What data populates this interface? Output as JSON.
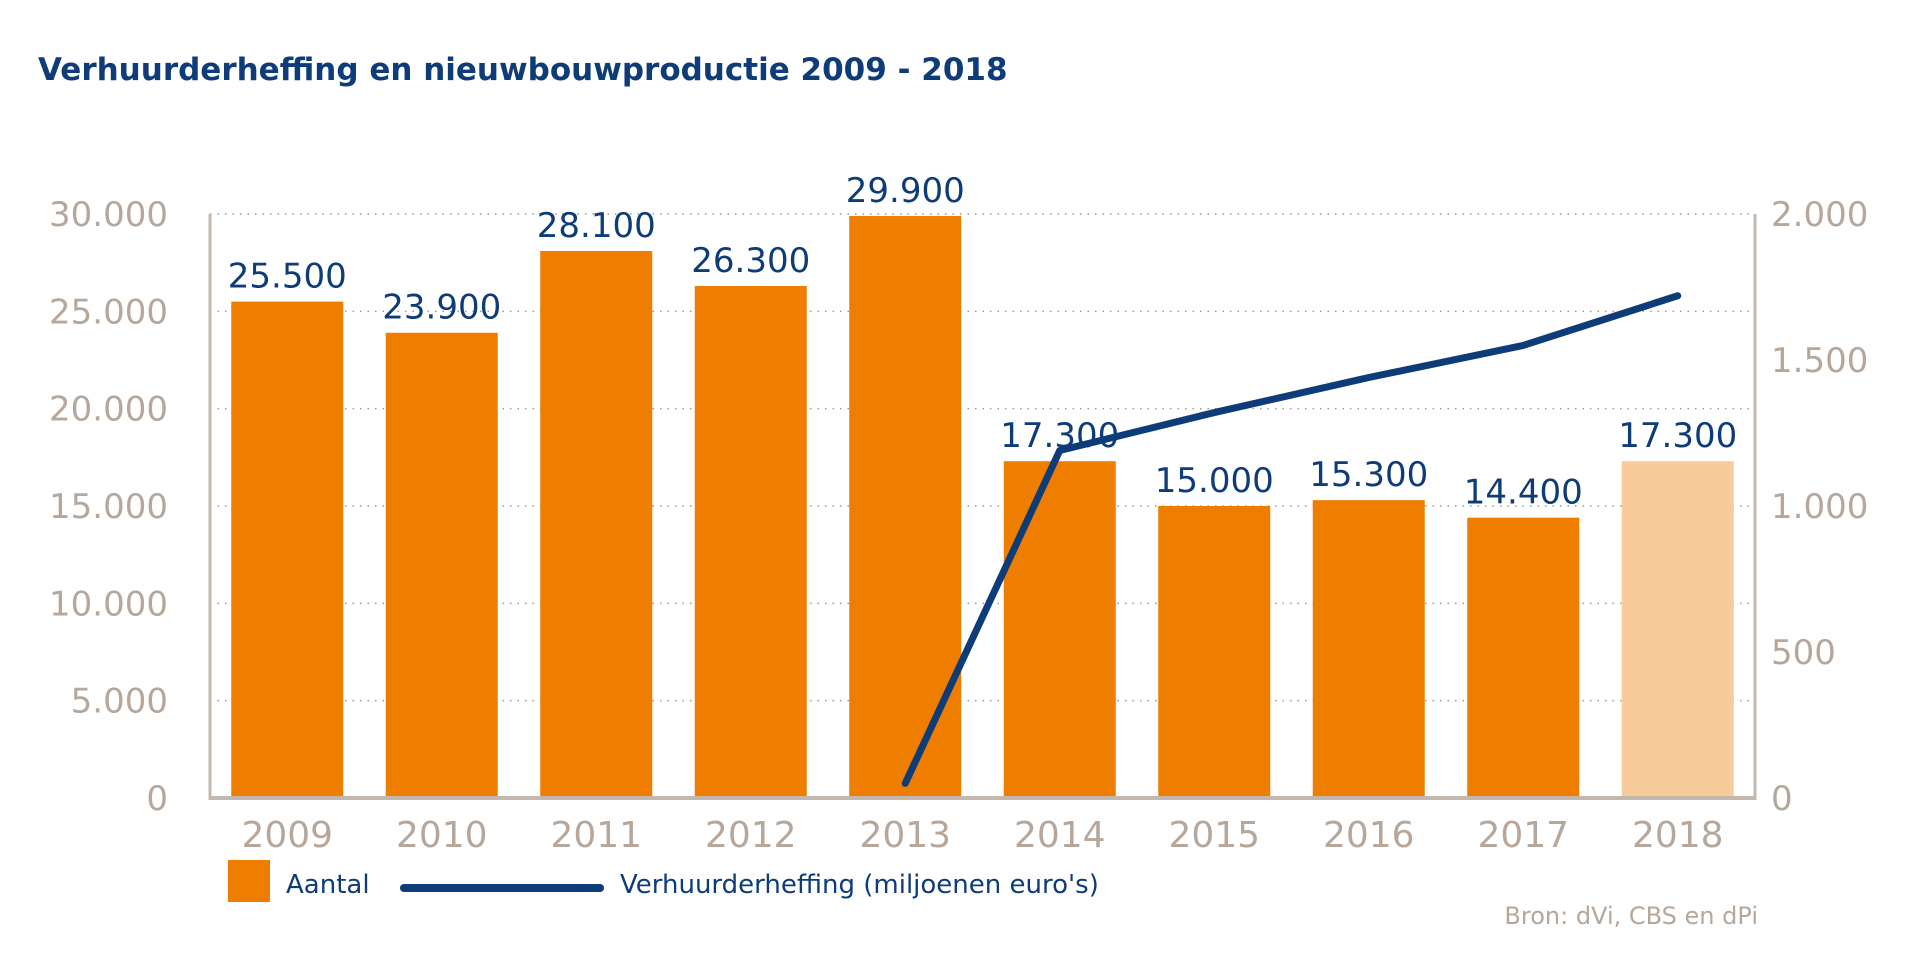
{
  "title": "Verhuurderheffing en nieuwbouwproductie 2009 - 2018",
  "source": "Bron: dVi, CBS en dPi",
  "colors": {
    "bar": "#ee7d00",
    "bar_highlight": "#f8cb9b",
    "line": "#0d3c78",
    "axis": "#c4b7ad",
    "tick_text": "#b7a79b",
    "title": "#0d3c78"
  },
  "chart_data": {
    "type": "bar",
    "categories": [
      "2009",
      "2010",
      "2011",
      "2012",
      "2013",
      "2014",
      "2015",
      "2016",
      "2017",
      "2018"
    ],
    "series": [
      {
        "name": "Aantal",
        "type": "bar",
        "axis": "left",
        "values": [
          25500,
          23900,
          28100,
          26300,
          29900,
          17300,
          15000,
          15300,
          14400,
          17300
        ],
        "labels": [
          "25.500",
          "23.900",
          "28.100",
          "26.300",
          "29.900",
          "17.300",
          "15.000",
          "15.300",
          "14.400",
          "17.300"
        ],
        "highlight_index": 9
      },
      {
        "name": "Verhuurderheffing (miljoenen euro's)",
        "type": "line",
        "axis": "right",
        "values": [
          null,
          null,
          null,
          null,
          50,
          1190,
          1320,
          1440,
          1550,
          1720
        ]
      }
    ],
    "y_left": {
      "lim": [
        0,
        30000
      ],
      "ticks": [
        0,
        5000,
        10000,
        15000,
        20000,
        25000,
        30000
      ],
      "tick_labels": [
        "0",
        "5.000",
        "10.000",
        "15.000",
        "20.000",
        "25.000",
        "30.000"
      ]
    },
    "y_right": {
      "lim": [
        0,
        2000
      ],
      "ticks": [
        0,
        500,
        1000,
        1500,
        2000
      ],
      "tick_labels": [
        "0",
        "500",
        "1.000",
        "1.500",
        "2.000"
      ]
    },
    "grid": "dotted horizontal",
    "legend": "bottom-left"
  }
}
